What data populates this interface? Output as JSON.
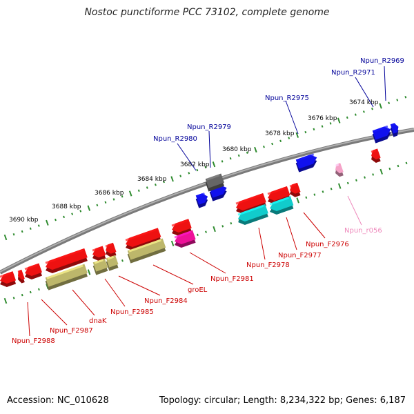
{
  "title": "Nostoc punctiforme PCC 73102, complete genome",
  "accession": "Accession: NC_010628",
  "summary": "Topology: circular; Length: 8,234,322 bp; Genes: 6,187",
  "colors": {
    "backbone": "#888888",
    "ruler": "#2e8b2e",
    "red": "#ee1111",
    "blue": "#1111ee",
    "olive": "#bdb76b",
    "cyan": "#11cccc",
    "magenta": "#ee1199",
    "gray": "#666666",
    "pink": "#f5a3c8",
    "label_red": "#cc0000",
    "label_blue": "#000099",
    "label_pink": "#ee88bb"
  },
  "ruler_ticks": [
    "3674 kbp",
    "3676 kbp",
    "3678 kbp",
    "3680 kbp",
    "3682 kbp",
    "3684 kbp",
    "3686 kbp",
    "3688 kbp",
    "3690 kbp"
  ],
  "labels_forward": [
    "Npun_R2969",
    "Npun_R2971",
    "Npun_R2975",
    "Npun_R2979",
    "Npun_R2980"
  ],
  "labels_reverse": [
    "Npun_F2976",
    "Npun_F2977",
    "Npun_F2978",
    "Npun_F2981",
    "groEL",
    "Npun_F2984",
    "Npun_F2985",
    "dnaK",
    "Npun_F2987",
    "Npun_F2988"
  ],
  "labels_rna": [
    "Npun_r056"
  ]
}
